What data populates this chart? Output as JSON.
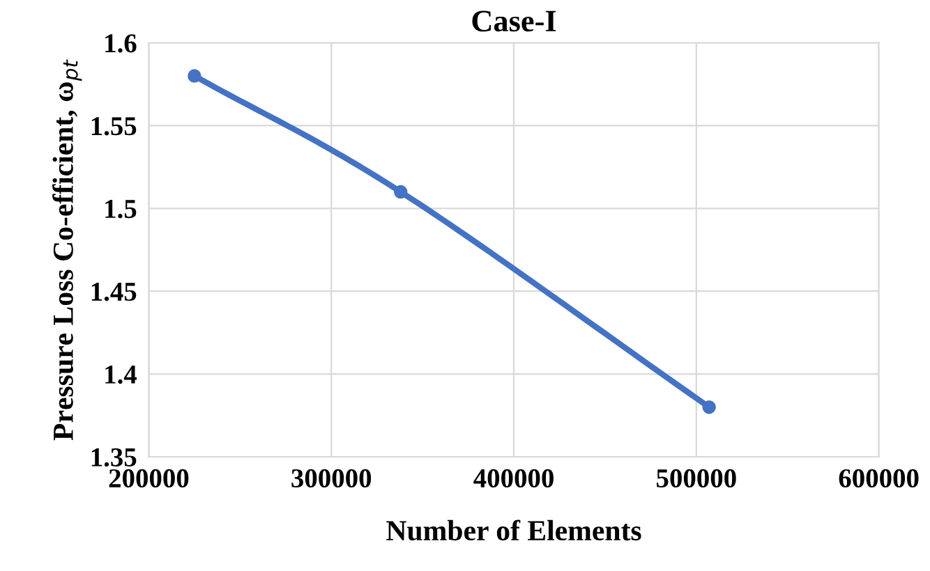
{
  "chart_data": {
    "type": "line",
    "title": "Case-I",
    "xlabel": "Number of Elements",
    "ylabel": "Pressure Loss Co-efficient, ω$_{pt}$",
    "series": [
      {
        "color": "#4472c4",
        "x": [
          225000,
          338000,
          507000
        ],
        "values": [
          1.58,
          1.51,
          1.38
        ]
      }
    ],
    "xlim": [
      200000,
      600000
    ],
    "xticks": [
      200000,
      300000,
      400000,
      500000,
      600000
    ],
    "ylim": [
      1.35,
      1.6
    ],
    "yticks": [
      1.35,
      {
        "value": 1.4,
        "label": "1.4"
      },
      1.45,
      {
        "value": 1.5,
        "label": "1.5"
      },
      1.55,
      {
        "value": 1.6,
        "label": "1.6"
      }
    ],
    "grid": true,
    "marker": "circle",
    "line_style": "solid"
  }
}
